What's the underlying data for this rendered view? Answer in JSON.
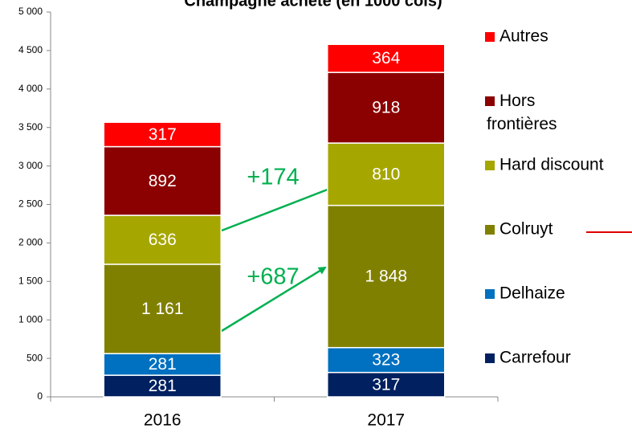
{
  "chart_data": {
    "type": "stacked_bar",
    "title": "Champagne acheté (en 1000 cols)",
    "categories": [
      "2016",
      "2017"
    ],
    "series": [
      {
        "name": "Carrefour",
        "color": "#002060",
        "values": [
          281,
          317
        ]
      },
      {
        "name": "Delhaize",
        "color": "#0070c0",
        "values": [
          281,
          323
        ]
      },
      {
        "name": "Colruyt",
        "color": "#808000",
        "values": [
          1161,
          1848
        ],
        "value_labels": [
          "1 161",
          "1 848"
        ]
      },
      {
        "name": "Hard discount",
        "color": "#a6a600",
        "values": [
          636,
          810
        ]
      },
      {
        "name": "Hors frontières",
        "color": "#8b0000",
        "values": [
          892,
          918
        ]
      },
      {
        "name": "Autres",
        "color": "#ff0000",
        "values": [
          317,
          364
        ]
      }
    ],
    "ylim": [
      0,
      5000
    ],
    "yticks": [
      0,
      500,
      {
        "value": 1000,
        "label": "1 000"
      },
      {
        "value": 1500,
        "label": "1 500"
      },
      {
        "value": 2000,
        "label": "2 000"
      },
      {
        "value": 2500,
        "label": "2 500"
      },
      {
        "value": 3000,
        "label": "3 000"
      },
      {
        "value": 3500,
        "label": "3 500"
      },
      {
        "value": 4000,
        "label": "4 000"
      },
      {
        "value": 4500,
        "label": "4 500"
      },
      {
        "value": 5000,
        "label": "5 000"
      }
    ],
    "annotations": [
      "+174",
      "+687"
    ],
    "legend": "right"
  }
}
